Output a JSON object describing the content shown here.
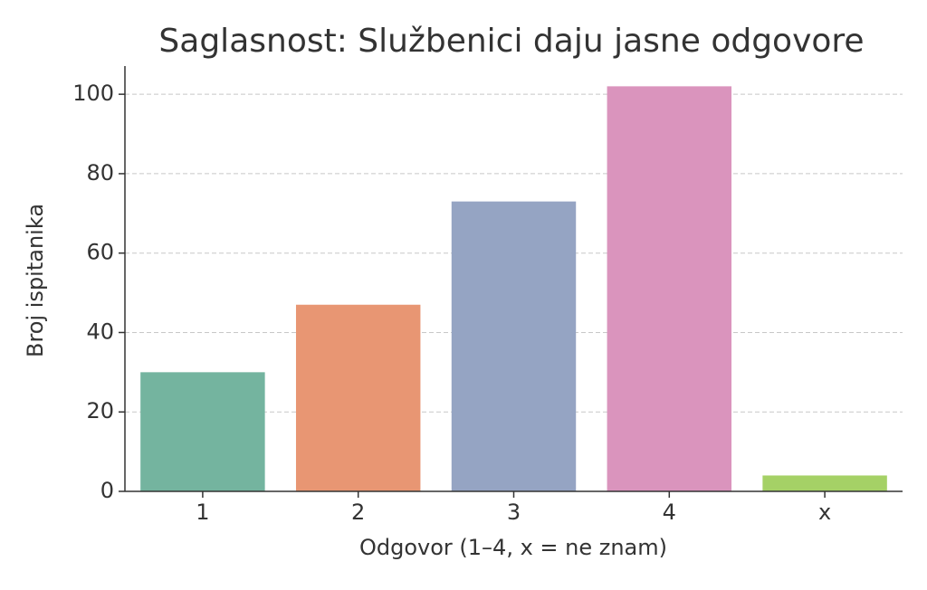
{
  "chart_data": {
    "type": "bar",
    "title": "Saglasnost: Službenici daju jasne odgovore",
    "x_label": "Odgovor (1–4, x = ne znam)",
    "y_label": "Broj ispitanika",
    "categories": [
      "1",
      "2",
      "3",
      "4",
      "x"
    ],
    "values": [
      30,
      47,
      73,
      102,
      4
    ],
    "colors": [
      "#74b49f",
      "#e89673",
      "#95a4c3",
      "#da94bd",
      "#a5d166"
    ],
    "ylim": [
      0,
      107.1
    ],
    "yticks": [
      0,
      20,
      40,
      60,
      80,
      100
    ],
    "grid": true
  }
}
